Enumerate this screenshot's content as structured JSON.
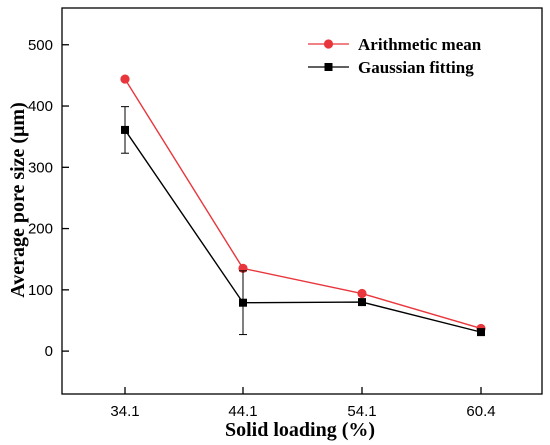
{
  "chart_data": {
    "type": "line",
    "categories": [
      "34.1",
      "44.1",
      "54.1",
      "60.4"
    ],
    "xlabel": "Solid loading (%)",
    "ylabel": "Average pore size (μm)",
    "ylim": [
      -70,
      560
    ],
    "yticks": [
      "0",
      "100",
      "200",
      "300",
      "400",
      "500"
    ],
    "legend_position": "top-right",
    "grid": false,
    "series": [
      {
        "name": "Arithmetic mean",
        "values": [
          444,
          135,
          94,
          37
        ],
        "color": "#e8363c",
        "marker": "circle"
      },
      {
        "name": "Gaussian fitting",
        "values": [
          361,
          79,
          80,
          31
        ],
        "error": [
          38,
          52,
          0,
          0
        ],
        "color": "#000000",
        "marker": "square"
      }
    ]
  }
}
